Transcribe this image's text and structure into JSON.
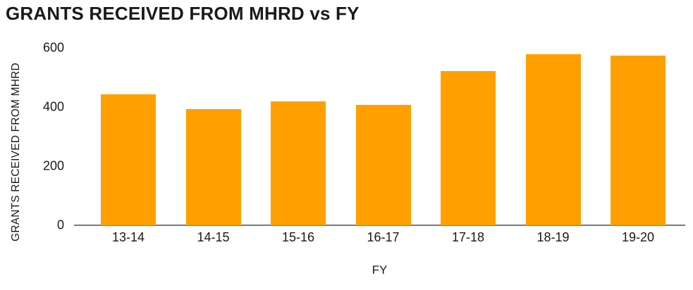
{
  "chart_data": {
    "type": "bar",
    "title": "GRANTS RECEIVED FROM MHRD vs FY",
    "xlabel": "FY",
    "ylabel": "GRANTS RECEIVED FROM MHRD",
    "categories": [
      "13-14",
      "14-15",
      "15-16",
      "16-17",
      "17-18",
      "18-19",
      "19-20"
    ],
    "values": [
      443,
      392,
      418,
      406,
      522,
      578,
      574
    ],
    "y_ticks": [
      0,
      200,
      400,
      600
    ],
    "ylim": [
      0,
      600
    ],
    "grid": false,
    "legend_position": "none",
    "bar_color": "#FFA000",
    "axis_line_color": "#7A7A7A",
    "text_color": "#1A1A1A",
    "background_color": "#FFFFFF"
  }
}
